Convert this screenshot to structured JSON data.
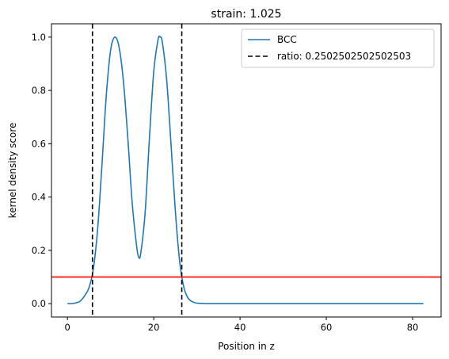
{
  "chart_data": {
    "type": "line",
    "title": "strain: 1.025",
    "xlabel": "Position in z",
    "ylabel": "kernel density score",
    "xlim": [
      -3.7,
      86.6
    ],
    "ylim": [
      -0.05,
      1.05
    ],
    "xticks": [
      0,
      20,
      40,
      60,
      80
    ],
    "yticks": [
      0.0,
      0.2,
      0.4,
      0.6,
      0.8,
      1.0
    ],
    "xtick_labels": [
      "0",
      "20",
      "40",
      "60",
      "80"
    ],
    "ytick_labels": [
      "0.0",
      "0.2",
      "0.4",
      "0.6",
      "0.8",
      "1.0"
    ],
    "grid": false,
    "legend_position": "top-right",
    "series": [
      {
        "name": "BCC",
        "color": "#1f77b4",
        "style": "solid",
        "x": [
          0,
          1,
          2,
          3,
          4,
          5,
          6,
          7,
          8,
          9,
          10,
          11,
          12,
          13,
          14,
          15,
          16,
          16.5,
          17,
          18,
          19,
          20,
          21,
          21.5,
          22,
          23,
          24,
          25,
          26,
          27,
          28,
          29,
          30,
          31,
          32,
          34,
          36,
          40,
          50,
          60,
          70,
          80,
          82.5
        ],
        "y": [
          0.0,
          0.0,
          0.003,
          0.01,
          0.03,
          0.06,
          0.13,
          0.28,
          0.52,
          0.78,
          0.95,
          1.0,
          0.96,
          0.83,
          0.62,
          0.38,
          0.22,
          0.175,
          0.19,
          0.34,
          0.62,
          0.87,
          0.99,
          1.0,
          0.98,
          0.84,
          0.6,
          0.35,
          0.16,
          0.06,
          0.02,
          0.007,
          0.002,
          0.001,
          0.0,
          0.0,
          0.0,
          0.0,
          0.0,
          0.0,
          0.0,
          0.0,
          0.0
        ]
      }
    ],
    "vlines": {
      "name": "ratio: 0.2502502502502503",
      "color": "#000000",
      "style": "dashed",
      "x": [
        5.8,
        26.5
      ]
    },
    "hline": {
      "y": 0.1,
      "color": "#ff0000",
      "style": "solid"
    }
  }
}
